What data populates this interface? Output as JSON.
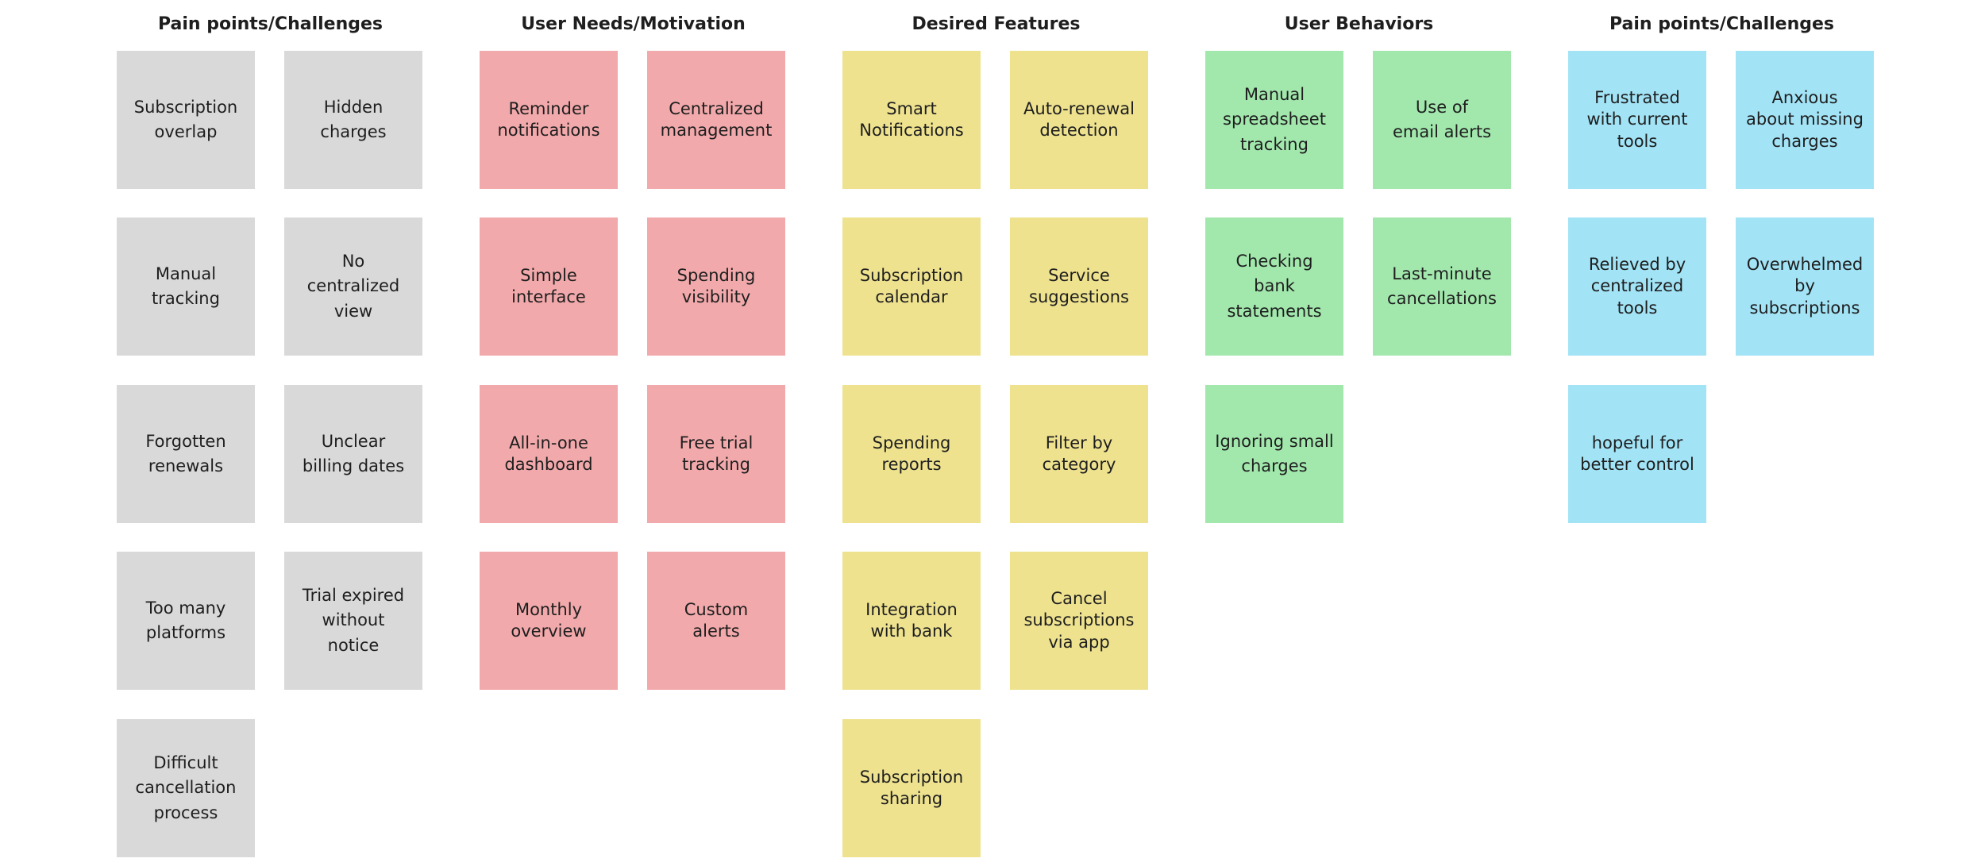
{
  "board": {
    "groups": [
      {
        "id": "pain-points-1",
        "title": "Pain points/Challenges",
        "color": "#d9d9d9",
        "notes": [
          "Subscription\noverlap",
          "Hidden\ncharges",
          "Manual\ntracking",
          "No\ncentralized\nview",
          "Forgotten\nrenewals",
          "Unclear\nbilling dates",
          "Too many\nplatforms",
          "Trial expired\nwithout\nnotice",
          "Difficult\ncancellation\nprocess"
        ]
      },
      {
        "id": "user-needs",
        "title": "User Needs/Motivation",
        "color": "#f2a9ab",
        "notes": [
          "Reminder\nnotifications",
          "Centralized\nmanagement",
          "Simple\ninterface",
          "Spending\nvisibility",
          "All-in-one\ndashboard",
          "Free trial\ntracking",
          "Monthly\noverview",
          "Custom\nalerts"
        ]
      },
      {
        "id": "desired-features",
        "title": "Desired Features",
        "color": "#eee28f",
        "notes": [
          "Smart\nNotifications",
          "Auto-renewal\ndetection",
          "Subscription\ncalendar",
          "Service\nsuggestions",
          "Spending\nreports",
          "Filter by\ncategory",
          "Integration\nwith bank",
          "Cancel\nsubscriptions\nvia app",
          "Subscription\nsharing"
        ]
      },
      {
        "id": "user-behaviors",
        "title": "User Behaviors",
        "color": "#a2e8ad",
        "notes": [
          "Manual\nspreadsheet\ntracking",
          "Use of\nemail alerts",
          "Checking bank\nstatements",
          "Last-minute\ncancellations",
          "Ignoring small\ncharges"
        ]
      },
      {
        "id": "pain-points-2",
        "title": "Pain points/Challenges",
        "color": "#a2e3f6",
        "notes": [
          "Frustrated\nwith current\ntools",
          "Anxious\nabout missing\ncharges",
          "Relieved by\ncentralized\ntools",
          "Overwhelmed\nby\nsubscriptions",
          "hopeful for\nbetter control"
        ]
      }
    ]
  }
}
